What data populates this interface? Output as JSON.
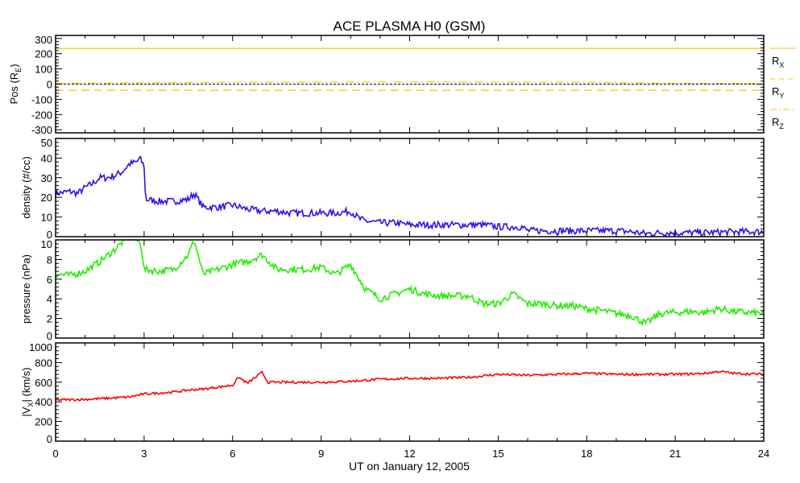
{
  "chart_data": {
    "type": "line",
    "title": "ACE PLASMA H0 (GSM)",
    "xlabel": "UT on January 12, 2005",
    "xlim": [
      0,
      24
    ],
    "xticks": [
      "0",
      "3",
      "6",
      "9",
      "12",
      "15",
      "18",
      "21",
      "24"
    ],
    "panels": [
      {
        "ylabel": "Pos (R",
        "ylabel_sub": "E",
        "ylabel_end": ")",
        "ylim": [
          -320,
          320
        ],
        "yticks": [
          "300",
          "200",
          "100",
          "0",
          "-100",
          "-200",
          "-300"
        ],
        "ytick_values": [
          300,
          200,
          100,
          0,
          -100,
          -200,
          -300
        ],
        "zero_line": true,
        "legend": [
          {
            "name": "R",
            "sub": "X",
            "style": "solid"
          },
          {
            "name": "R",
            "sub": "Y",
            "style": "dashed"
          },
          {
            "name": "R",
            "sub": "Z",
            "style": "dashdot"
          }
        ],
        "series": [
          {
            "name": "Rx",
            "color": "#f5c400",
            "style": "solid",
            "x": [
              0,
              24
            ],
            "y": [
              235,
              235
            ]
          },
          {
            "name": "Ry",
            "color": "#f5c400",
            "style": "dashed",
            "x": [
              0,
              24
            ],
            "y": [
              -40,
              -40
            ]
          },
          {
            "name": "Rz",
            "color": "#f5c400",
            "style": "dashdot",
            "x": [
              0,
              6,
              12,
              18,
              21,
              24
            ],
            "y": [
              5,
              12,
              15,
              12,
              5,
              5
            ]
          }
        ]
      },
      {
        "ylabel": "density (#/cc)",
        "ylim": [
          0,
          50
        ],
        "yticks": [
          "50",
          "40",
          "30",
          "20",
          "10",
          "0"
        ],
        "ytick_values": [
          50,
          40,
          30,
          20,
          10,
          0
        ],
        "series": [
          {
            "name": "density",
            "color": "#2a14e6",
            "style": "solid",
            "x": [
              0,
              0.5,
              0.75,
              1,
              1.25,
              1.5,
              1.75,
              2,
              2.25,
              2.5,
              2.75,
              2.85,
              3.0,
              3.05,
              3.5,
              4,
              4.5,
              4.7,
              5,
              5.5,
              6,
              6.5,
              7,
              7.5,
              8,
              8.5,
              9,
              9.5,
              10,
              10.3,
              10.5,
              11,
              11.5,
              12,
              12.5,
              13,
              13.5,
              14,
              14.5,
              15,
              15.5,
              15.8,
              16,
              17,
              18,
              19,
              19.5,
              20,
              20.5,
              21,
              22,
              23,
              24
            ],
            "y": [
              22,
              23,
              22,
              25,
              27,
              30,
              30,
              31,
              33,
              37,
              38,
              40,
              36,
              19,
              18,
              18,
              19,
              22,
              15,
              15,
              16,
              14,
              13,
              13,
              12,
              12,
              12,
              12,
              13,
              9,
              8,
              7,
              7,
              6,
              6,
              6,
              6,
              6,
              6,
              5,
              5,
              5,
              3,
              3,
              3,
              3,
              2.5,
              1.5,
              2,
              2,
              2,
              2.5,
              2.5
            ]
          }
        ]
      },
      {
        "ylabel": "pressure (nPa)",
        "ylim": [
          0,
          10
        ],
        "yticks": [
          "10",
          "8",
          "6",
          "4",
          "2",
          "0"
        ],
        "ytick_values": [
          10,
          8,
          6,
          4,
          2,
          0
        ],
        "series": [
          {
            "name": "pressure",
            "color": "#22ee00",
            "style": "solid",
            "x": [
              0,
              0.5,
              1,
              1.5,
              2,
              2.5,
              2.75,
              2.9,
              3.0,
              3.5,
              4,
              4.5,
              4.7,
              5,
              5.5,
              6,
              6.5,
              7,
              7.5,
              8,
              8.5,
              9,
              9.5,
              10,
              10.5,
              11,
              11.5,
              12,
              12.5,
              13,
              13.5,
              14,
              14.5,
              15,
              15.5,
              16,
              16.5,
              17,
              17.5,
              18,
              18.5,
              19,
              19.5,
              20,
              20.5,
              21,
              21.5,
              22,
              22.5,
              23,
              23.5,
              24
            ],
            "y": [
              6.5,
              6.4,
              6.8,
              7.8,
              9,
              10.5,
              10,
              9.5,
              7,
              6.8,
              7,
              8.5,
              10,
              6.5,
              7,
              7.5,
              7.8,
              8.5,
              7,
              7,
              7,
              7.2,
              6.5,
              7.5,
              5,
              4,
              4.5,
              5,
              4.5,
              4.3,
              4.3,
              4.3,
              3.5,
              3.5,
              4.5,
              3.5,
              3.5,
              3.3,
              3.3,
              3,
              2.8,
              2.5,
              2.3,
              1.5,
              2.5,
              2.6,
              2.7,
              2.6,
              3,
              2.7,
              2.6,
              2.5
            ]
          }
        ]
      },
      {
        "ylabel": "|V",
        "ylabel_sub": "X",
        "ylabel_end": "| (km/s)",
        "ylim": [
          0,
          1000
        ],
        "yticks": [
          "1000",
          "800",
          "600",
          "400",
          "200",
          "0"
        ],
        "ytick_values": [
          1000,
          800,
          600,
          400,
          200,
          0
        ],
        "series": [
          {
            "name": "speed",
            "color": "#ff0000",
            "style": "solid",
            "x": [
              0,
              1,
              2,
              2.5,
              3,
              4,
              4.5,
              5,
              5.5,
              6,
              6.2,
              6.5,
              7,
              7.2,
              8,
              9,
              10,
              11,
              12,
              13,
              14,
              15,
              16,
              17,
              18,
              19,
              20,
              21,
              22,
              22.5,
              23,
              24
            ],
            "y": [
              420,
              425,
              440,
              450,
              480,
              500,
              520,
              530,
              550,
              570,
              650,
              590,
              700,
              600,
              600,
              600,
              610,
              630,
              640,
              640,
              650,
              680,
              670,
              680,
              690,
              680,
              680,
              680,
              690,
              710,
              690,
              680
            ]
          }
        ]
      }
    ]
  }
}
